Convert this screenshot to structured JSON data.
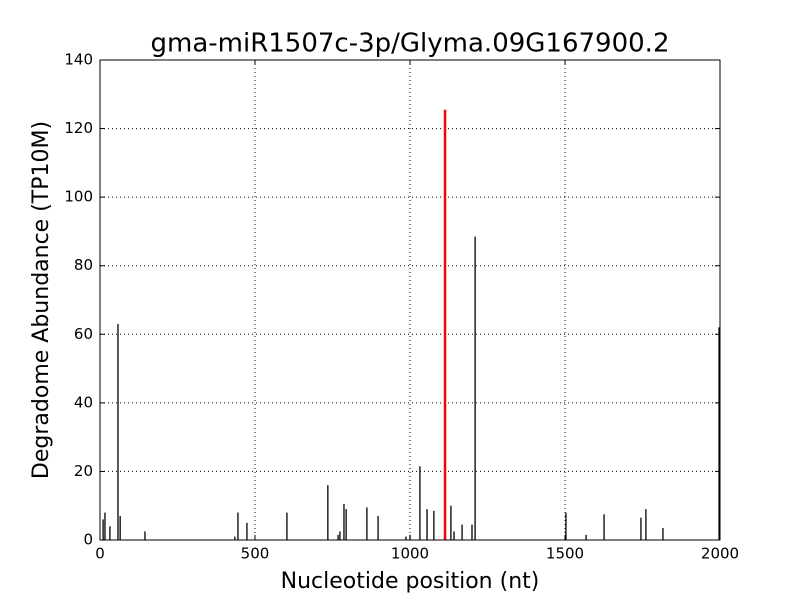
{
  "chart_data": {
    "type": "stem",
    "title": "gma-miR1507c-3p/Glyma.09G167900.2",
    "xlabel": "Nucleotide position (nt)",
    "ylabel": "Degradome Abundance (TP10M)",
    "xlim": [
      0,
      2000
    ],
    "ylim": [
      0,
      140
    ],
    "xticks": [
      0,
      500,
      1000,
      1500,
      2000
    ],
    "yticks": [
      0,
      20,
      40,
      60,
      80,
      100,
      120,
      140
    ],
    "grid": true,
    "series": [
      {
        "color": "#000000",
        "x": [
          10,
          16,
          32,
          58,
          65,
          145,
          435,
          445,
          474,
          603,
          735,
          768,
          774,
          787,
          794,
          861,
          897,
          987,
          1000,
          1032,
          1055,
          1077,
          1132,
          1142,
          1168,
          1200,
          1210,
          1503,
          1568,
          1626,
          1745,
          1761,
          1816,
          1997
        ],
        "values": [
          6,
          8,
          4,
          63,
          7,
          2.5,
          1,
          8,
          5,
          8,
          16,
          1.5,
          2.5,
          10.5,
          9,
          9.5,
          7,
          1,
          1.5,
          21.5,
          9,
          8.5,
          10,
          2.5,
          4.5,
          4.5,
          88.5,
          8,
          1.5,
          7.5,
          6.5,
          9,
          3.5,
          62
        ]
      },
      {
        "color": "#ff0000",
        "x": [
          1113
        ],
        "values": [
          125.5
        ]
      }
    ]
  }
}
